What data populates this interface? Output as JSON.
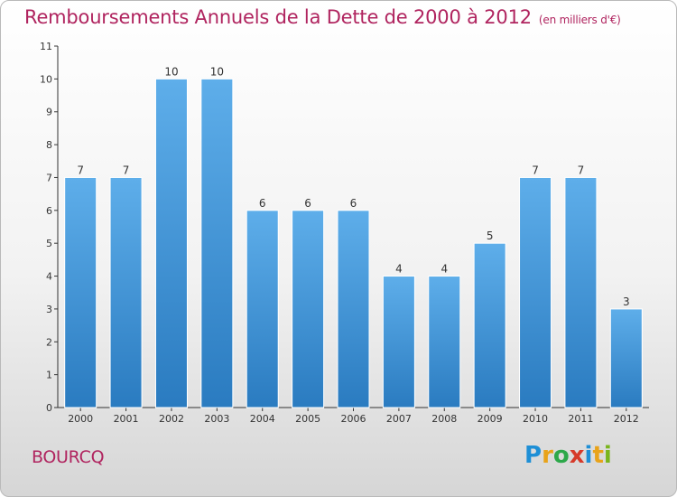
{
  "header": {
    "title": "Remboursements Annuels de la Dette de 2000 à 2012",
    "subtitle": "(en milliers d'€)"
  },
  "footer": {
    "commune": "BOURCQ",
    "logo_letters": [
      "P",
      "r",
      "o",
      "x",
      "i",
      "t",
      "i"
    ],
    "logo_colors": [
      "#1e8fd6",
      "#e8a31a",
      "#2da84a",
      "#d63a2a",
      "#1e8fd6",
      "#e8a31a",
      "#7ab51d"
    ]
  },
  "colors": {
    "title": "#b0245f",
    "bar_top": "#5eaeea",
    "bar_bottom": "#2a7bc0",
    "axis": "#333333",
    "grid": "#cccccc"
  },
  "chart_data": {
    "type": "bar",
    "title": "Remboursements Annuels de la Dette de 2000 à 2012",
    "subtitle": "(en milliers d'€)",
    "categories": [
      "2000",
      "2001",
      "2002",
      "2003",
      "2004",
      "2005",
      "2006",
      "2007",
      "2008",
      "2009",
      "2010",
      "2011",
      "2012"
    ],
    "values": [
      7,
      7,
      10,
      10,
      6,
      6,
      6,
      4,
      4,
      5,
      7,
      7,
      3
    ],
    "data_labels": [
      "7",
      "7",
      "10",
      "10",
      "6",
      "6",
      "6",
      "4",
      "4",
      "5",
      "7",
      "7",
      "3"
    ],
    "yticks": [
      "0",
      "1",
      "2",
      "3",
      "4",
      "5",
      "6",
      "7",
      "8",
      "9",
      "10",
      "11"
    ],
    "ylim": [
      0,
      11
    ],
    "grid": false,
    "legend": "none"
  }
}
